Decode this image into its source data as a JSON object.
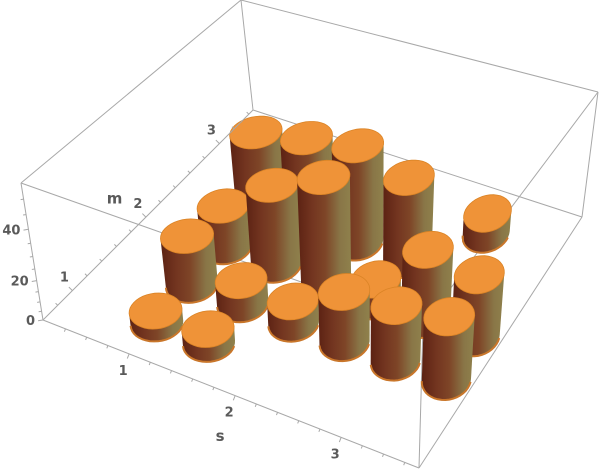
{
  "chart_data": {
    "type": "bar",
    "style": "3d-cylinder-bar-chart",
    "title": "",
    "xlabel": "s",
    "ylabel": "m",
    "zlabel": "",
    "x_ticks": [
      1,
      2,
      3
    ],
    "y_ticks": [
      1,
      2,
      3
    ],
    "z_ticks": [
      0,
      20,
      40
    ],
    "x_minor_step": 0.2,
    "y_minor_step": 0.2,
    "z_minor_step": 5,
    "x_values": [
      1,
      1.5,
      2,
      2.5,
      3,
      3.5
    ],
    "y_values": [
      1,
      1.5,
      2,
      2.5,
      3
    ],
    "series": [
      {
        "m": 1,
        "values": [
          7,
          8,
          0,
          0,
          0,
          0
        ]
      },
      {
        "m": 1.5,
        "values": [
          25,
          13,
          12,
          25,
          27,
          30
        ]
      },
      {
        "m": 2,
        "values": [
          22,
          38,
          47,
          12,
          33,
          30
        ]
      },
      {
        "m": 2.5,
        "values": [
          38,
          42,
          45,
          39,
          0,
          0
        ]
      },
      {
        "m": 3,
        "values": [
          0,
          0,
          0,
          0,
          12,
          0
        ]
      }
    ],
    "zlim": [
      0,
      55
    ],
    "bar_radius": 0.21,
    "legend": null,
    "grid": "box-frame-only",
    "colors": {
      "cylinder_top": "#ef9338",
      "cylinder_top_edge": "#db8426",
      "cylinder_side_dark": "#5c2213",
      "cylinder_side_mid1": "#733520",
      "cylinder_side_mid2": "#7e4527",
      "cylinder_side_olive": "#897647",
      "cylinder_side_light": "#8f814c",
      "cylinder_base_rim": "#c9762a",
      "box_edge": "#a8a8a8",
      "tick_label": "#5a5a5a",
      "background": "#ffffff"
    }
  }
}
